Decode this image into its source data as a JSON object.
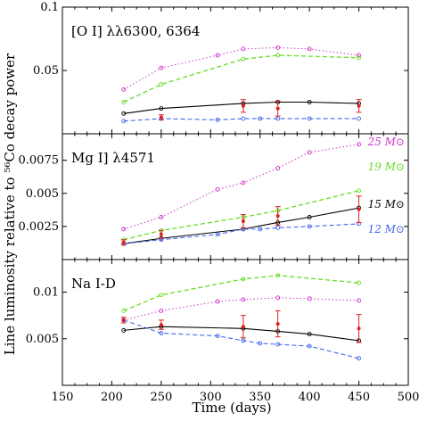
{
  "chart_data": {
    "type": "line",
    "xlabel": "Time (days)",
    "ylabel": "Line luminosity relative to ⁵⁶Co decay power",
    "xlim": [
      150,
      500
    ],
    "xticks": [
      150,
      200,
      250,
      300,
      350,
      400,
      450,
      500
    ],
    "series_colors": {
      "25 M⊙": "#cc33cc",
      "19 M⊙": "#66dd22",
      "15 M⊙": "#000000",
      "12 M⊙": "#4466ee",
      "observed": "#dd2222"
    },
    "mass_labels": [
      {
        "text": "25 M⊙",
        "color": "#cc33cc"
      },
      {
        "text": "19 M⊙",
        "color": "#66dd22"
      },
      {
        "text": "15 M⊙",
        "color": "#000000"
      },
      {
        "text": "12 M⊙",
        "color": "#4466ee"
      }
    ],
    "panels": [
      {
        "title": "[O I] λλ6300, 6364",
        "ylim": [
          0,
          0.1
        ],
        "yticks": [
          {
            "value": 0.05,
            "label": "0.05"
          },
          {
            "value": 0.1,
            "label": "0.1"
          }
        ],
        "series": [
          {
            "name": "25 M⊙",
            "x": [
              212,
              250,
              307,
              333,
              368,
              400,
              450
            ],
            "y": [
              0.035,
              0.052,
              0.062,
              0.067,
              0.068,
              0.067,
              0.062
            ]
          },
          {
            "name": "19 M⊙",
            "x": [
              212,
              250,
              333,
              368,
              450
            ],
            "y": [
              0.025,
              0.039,
              0.059,
              0.062,
              0.06
            ]
          },
          {
            "name": "15 M⊙",
            "x": [
              212,
              250,
              333,
              368,
              400,
              450
            ],
            "y": [
              0.016,
              0.02,
              0.024,
              0.025,
              0.025,
              0.024
            ]
          },
          {
            "name": "12 M⊙",
            "x": [
              212,
              250,
              307,
              333,
              350,
              368,
              400,
              450
            ],
            "y": [
              0.01,
              0.012,
              0.011,
              0.012,
              0.012,
              0.012,
              0.012,
              0.012
            ]
          }
        ],
        "observed": {
          "x": [
            250,
            333,
            368,
            450
          ],
          "y": [
            0.013,
            0.022,
            0.02,
            0.022
          ],
          "err": [
            0.002,
            0.005,
            0.006,
            0.005
          ]
        }
      },
      {
        "title": "Mg I] λ4571",
        "ylim": [
          0,
          0.0095
        ],
        "yticks": [
          {
            "value": 0.0025,
            "label": "0.0025"
          },
          {
            "value": 0.005,
            "label": "0.005"
          },
          {
            "value": 0.0075,
            "label": "0.0075"
          }
        ],
        "series": [
          {
            "name": "25 M⊙",
            "x": [
              212,
              250,
              307,
              333,
              368,
              400,
              450
            ],
            "y": [
              0.0023,
              0.0032,
              0.0053,
              0.0058,
              0.0069,
              0.0081,
              0.0087
            ]
          },
          {
            "name": "19 M⊙",
            "x": [
              212,
              250,
              333,
              368,
              450
            ],
            "y": [
              0.0015,
              0.0022,
              0.0032,
              0.0037,
              0.0052
            ]
          },
          {
            "name": "15 M⊙",
            "x": [
              212,
              250,
              333,
              368,
              400,
              450
            ],
            "y": [
              0.0012,
              0.0016,
              0.0023,
              0.0028,
              0.0032,
              0.0039
            ]
          },
          {
            "name": "12 M⊙",
            "x": [
              212,
              250,
              307,
              333,
              350,
              368,
              400,
              450
            ],
            "y": [
              0.0012,
              0.0015,
              0.0019,
              0.0023,
              0.0023,
              0.0024,
              0.0025,
              0.0027
            ]
          }
        ],
        "observed": {
          "x": [
            212,
            250,
            333,
            368,
            450
          ],
          "y": [
            0.0013,
            0.0019,
            0.0029,
            0.0033,
            0.0038
          ],
          "err": [
            0.0002,
            0.0003,
            0.0005,
            0.0007,
            0.001
          ]
        }
      },
      {
        "title": "Na I-D",
        "ylim": [
          0,
          0.0135
        ],
        "yticks": [
          {
            "value": 0.005,
            "label": "0.005"
          },
          {
            "value": 0.01,
            "label": "0.01"
          }
        ],
        "series": [
          {
            "name": "25 M⊙",
            "x": [
              212,
              250,
              307,
              333,
              368,
              400,
              450
            ],
            "y": [
              0.007,
              0.008,
              0.009,
              0.0092,
              0.0094,
              0.0093,
              0.0091
            ]
          },
          {
            "name": "19 M⊙",
            "x": [
              212,
              250,
              333,
              368,
              450
            ],
            "y": [
              0.008,
              0.0097,
              0.0114,
              0.0118,
              0.011
            ]
          },
          {
            "name": "15 M⊙",
            "x": [
              212,
              250,
              333,
              368,
              400,
              450
            ],
            "y": [
              0.0059,
              0.0063,
              0.0061,
              0.0058,
              0.0055,
              0.0048
            ]
          },
          {
            "name": "12 M⊙",
            "x": [
              212,
              250,
              307,
              333,
              350,
              368,
              400,
              450
            ],
            "y": [
              0.007,
              0.0056,
              0.0053,
              0.0048,
              0.0045,
              0.0044,
              0.0042,
              0.0029
            ]
          }
        ],
        "observed": {
          "x": [
            212,
            250,
            333,
            368,
            450
          ],
          "y": [
            0.007,
            0.0065,
            0.0063,
            0.0066,
            0.0061
          ],
          "err": [
            0.0003,
            0.0005,
            0.0012,
            0.0014,
            0.0015
          ]
        }
      }
    ]
  }
}
